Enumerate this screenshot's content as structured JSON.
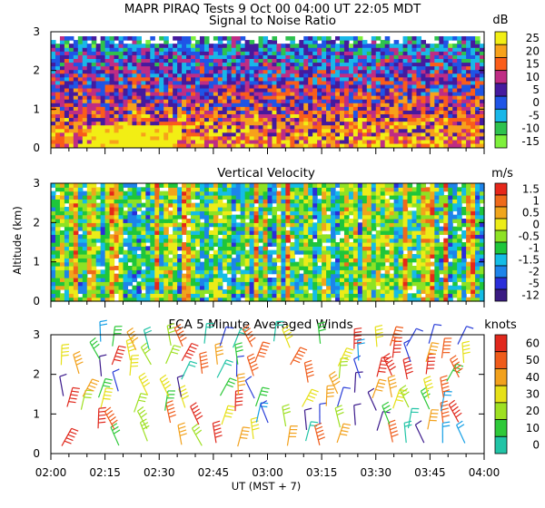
{
  "figure_title": "MAPR PIRAQ Tests  9 Oct 00  04:00 UT  22:05  MDT",
  "colors": {
    "snr": [
      "#7ef03c",
      "#2ec24e",
      "#19b7e8",
      "#1f55e6",
      "#451a9e",
      "#bf2d84",
      "#fa5d1a",
      "#f7a21b",
      "#f2ee14"
    ],
    "vel": [
      "#1a0f28",
      "#3a1b82",
      "#2a2ed9",
      "#1d84ea",
      "#14bde6",
      "#1ec63b",
      "#8ee224",
      "#ecec18",
      "#f0a51c",
      "#ef6a1a",
      "#e6271a"
    ],
    "wind": [
      "#3c1a8c",
      "#2b3fd8",
      "#159fe5",
      "#21c4a6",
      "#2fc93a",
      "#9ee022",
      "#e6e018",
      "#f2a11c",
      "#ef5b1a",
      "#e0281c"
    ]
  },
  "chart_data": [
    {
      "type": "heatmap",
      "id": "snr",
      "title": "Signal to Noise Ratio",
      "units": "dB",
      "y_ticks": [
        "0",
        "1",
        "2",
        "3"
      ],
      "ylim": [
        0,
        3
      ],
      "x_range_min": [
        0,
        120
      ],
      "colorbar": [
        "25",
        "20",
        "15",
        "10",
        "5",
        "0",
        "-5",
        "-10",
        "-15"
      ]
    },
    {
      "type": "heatmap",
      "id": "vel",
      "title": "Vertical Velocity",
      "units": "m/s",
      "ylabel": "Altitude (km)",
      "y_ticks": [
        "0",
        "1",
        "2",
        "3"
      ],
      "ylim": [
        0,
        3
      ],
      "x_range_min": [
        0,
        120
      ],
      "colorbar": [
        "1.5",
        "1",
        "0.5",
        "0",
        "-0.5",
        "-1",
        "-1.5",
        "-2",
        "-5",
        "-12"
      ]
    },
    {
      "type": "scatter",
      "id": "wind",
      "title": "FCA 5 Minute Averaged Winds",
      "units": "knots",
      "y_ticks": [
        "0",
        "1",
        "2",
        "3"
      ],
      "ylim": [
        0,
        3
      ],
      "x_range_min": [
        0,
        120
      ],
      "colorbar": [
        "60",
        "50",
        "40",
        "30",
        "20",
        "10",
        "0"
      ],
      "x_ticks": [
        "02:00",
        "02:15",
        "02:30",
        "02:45",
        "03:00",
        "03:15",
        "03:30",
        "03:45",
        "04:00"
      ],
      "xlabel": "UT  (MST + 7)"
    }
  ]
}
